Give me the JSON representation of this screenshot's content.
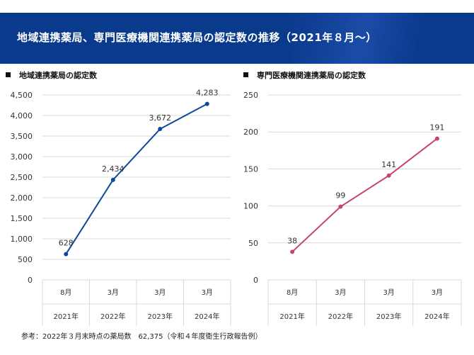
{
  "title": "地域連携薬局、専門医療機関連携薬局の認定数の推移（2021年８月～）",
  "note": "参考：2022年３月末時点の薬局数　62,375（令和４年度衛生行政報告例）",
  "colors": {
    "banner": "#0a3a8c",
    "left_series": "#0a4a9a",
    "right_series": "#c8436e",
    "grid": "#d9d9d9"
  },
  "chart_data": [
    {
      "type": "line",
      "title": "地域連携薬局の認定数",
      "categories": [
        {
          "month": "8月",
          "year": "2021年"
        },
        {
          "month": "3月",
          "year": "2022年"
        },
        {
          "month": "3月",
          "year": "2023年"
        },
        {
          "month": "3月",
          "year": "2024年"
        }
      ],
      "values": [
        628,
        2434,
        3672,
        4283
      ],
      "value_labels": [
        "628",
        "2,434",
        "3,672",
        "4,283"
      ],
      "ylim": [
        0,
        4500
      ],
      "yticks": [
        "0",
        "500",
        "1,000",
        "1,500",
        "2,000",
        "2,500",
        "3,000",
        "3,500",
        "4,000",
        "4,500"
      ],
      "grid": true,
      "legend": "none",
      "color": "#0a4a9a"
    },
    {
      "type": "line",
      "title": "専門医療機関連携薬局の認定数",
      "categories": [
        {
          "month": "8月",
          "year": "2021年"
        },
        {
          "month": "3月",
          "year": "2022年"
        },
        {
          "month": "3月",
          "year": "2023年"
        },
        {
          "month": "3月",
          "year": "2024年"
        }
      ],
      "values": [
        38,
        99,
        141,
        191
      ],
      "value_labels": [
        "38",
        "99",
        "141",
        "191"
      ],
      "ylim": [
        0,
        250
      ],
      "yticks": [
        "0",
        "50",
        "100",
        "150",
        "200",
        "250"
      ],
      "grid": true,
      "legend": "none",
      "color": "#c8436e"
    }
  ]
}
